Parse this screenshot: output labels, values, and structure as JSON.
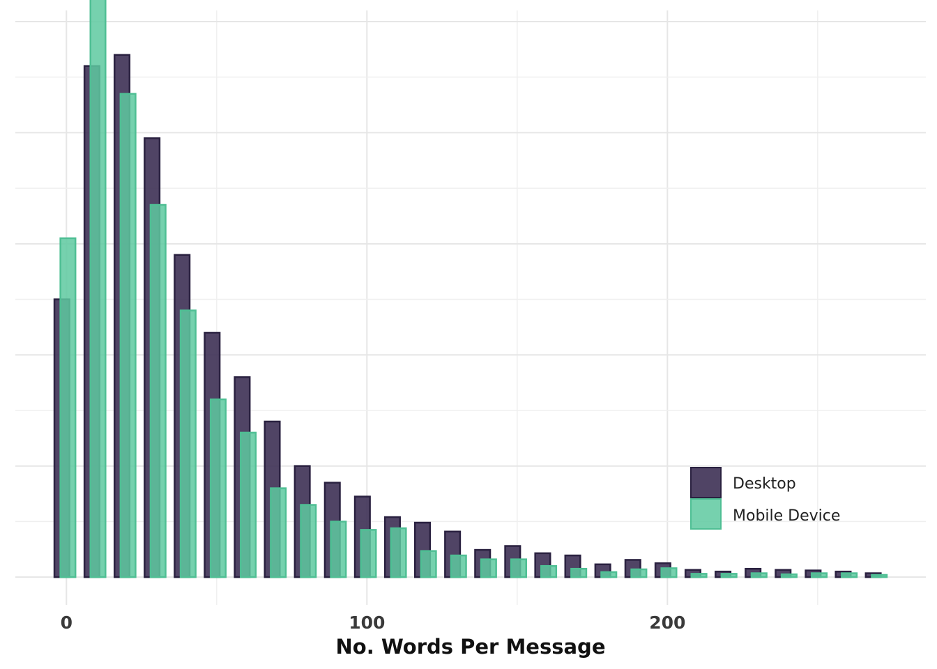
{
  "chart_data": {
    "type": "bar",
    "title": "",
    "xlabel": "No. Words Per Message",
    "ylabel": "",
    "x": [
      0,
      10,
      20,
      30,
      40,
      50,
      60,
      70,
      80,
      90,
      100,
      110,
      120,
      130,
      140,
      150,
      160,
      170,
      180,
      190,
      200,
      210,
      220,
      230,
      240,
      250,
      260,
      270
    ],
    "xticks": [
      0,
      100,
      200
    ],
    "xtick_labels": [
      "0",
      "100",
      "200"
    ],
    "xlim": [
      -17,
      286
    ],
    "ylim": [
      -0.05,
      1.02
    ],
    "y_axis_labels": "hidden",
    "grid": true,
    "legend": {
      "placement": "bottom-right"
    },
    "series": [
      {
        "name": "Desktop",
        "color": "#3d3054",
        "values": [
          0.5,
          0.92,
          0.94,
          0.79,
          0.58,
          0.44,
          0.36,
          0.28,
          0.2,
          0.17,
          0.145,
          0.108,
          0.098,
          0.082,
          0.049,
          0.056,
          0.043,
          0.039,
          0.023,
          0.031,
          0.025,
          0.013,
          0.01,
          0.015,
          0.013,
          0.012,
          0.01,
          0.007
        ]
      },
      {
        "name": "Mobile Device",
        "color": "#5ec9a0",
        "values": [
          0.61,
          1.05,
          0.87,
          0.67,
          0.48,
          0.32,
          0.26,
          0.16,
          0.13,
          0.1,
          0.085,
          0.088,
          0.047,
          0.039,
          0.032,
          0.032,
          0.02,
          0.015,
          0.009,
          0.014,
          0.016,
          0.006,
          0.006,
          0.007,
          0.005,
          0.007,
          0.007,
          0.004
        ]
      }
    ]
  }
}
